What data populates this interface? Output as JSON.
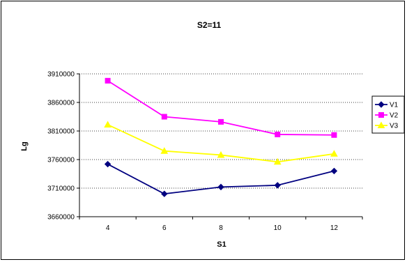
{
  "chart_data": {
    "type": "line",
    "title": "S2=11",
    "xlabel": "S1",
    "ylabel": "Lg",
    "categories": [
      4,
      6,
      8,
      10,
      12
    ],
    "ylim": [
      3660000,
      3910000
    ],
    "yticks": [
      3660000,
      3710000,
      3760000,
      3810000,
      3860000,
      3910000
    ],
    "grid": "horizontal, dotted",
    "legend_position": "right",
    "series": [
      {
        "name": "V1",
        "color": "#000080",
        "marker": "diamond",
        "values": [
          3752000,
          3700000,
          3712000,
          3715000,
          3740000
        ]
      },
      {
        "name": "V2",
        "color": "#FF00FF",
        "marker": "square",
        "values": [
          3898000,
          3835000,
          3826000,
          3804000,
          3803000
        ]
      },
      {
        "name": "V3",
        "color": "#FFFF00",
        "marker": "triangle",
        "values": [
          3821000,
          3775000,
          3768000,
          3756000,
          3770000
        ]
      }
    ]
  }
}
